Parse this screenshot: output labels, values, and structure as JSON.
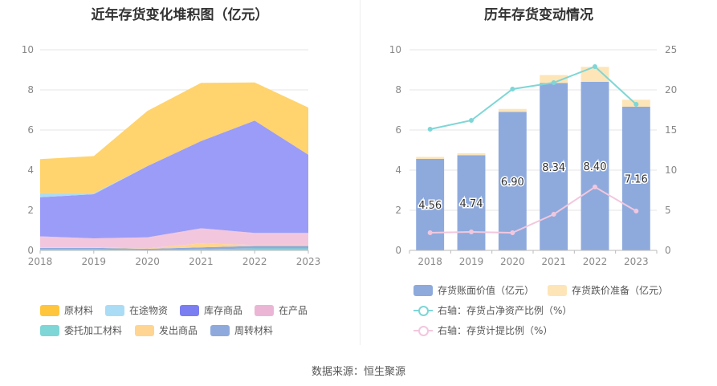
{
  "source_text": "数据来源：恒生聚源",
  "chart_data": [
    {
      "type": "area",
      "title": "近年存货变化堆积图（亿元）",
      "x": [
        "2018",
        "2019",
        "2020",
        "2021",
        "2022",
        "2023"
      ],
      "ylim": [
        0,
        10
      ],
      "yticks": [
        "0",
        "2",
        "4",
        "6",
        "8",
        "10"
      ],
      "stacked": true,
      "grid": true,
      "legend_position": "bottom",
      "series": [
        {
          "name": "委托加工材料",
          "color": "#7fd6d6",
          "values": [
            0.05,
            0.05,
            0.02,
            0.05,
            0.1,
            0.1
          ]
        },
        {
          "name": "周转材料",
          "color": "#8eaadc",
          "values": [
            0.08,
            0.08,
            0.06,
            0.1,
            0.12,
            0.12
          ]
        },
        {
          "name": "发出商品",
          "color": "#ffd591",
          "values": [
            0.02,
            0.02,
            0.02,
            0.2,
            0.05,
            0.05
          ]
        },
        {
          "name": "在产品",
          "color": "#f2c7de",
          "values": [
            0.55,
            0.45,
            0.55,
            0.75,
            0.6,
            0.6
          ]
        },
        {
          "name": "库存商品",
          "color": "#9b9cf7",
          "values": [
            1.95,
            2.2,
            3.55,
            4.35,
            5.6,
            3.9
          ]
        },
        {
          "name": "在途物资",
          "color": "#abdcf5",
          "values": [
            0.2,
            0.05,
            0.0,
            0.0,
            0.0,
            0.0
          ]
        },
        {
          "name": "原材料",
          "color": "#ffd36e",
          "values": [
            1.7,
            1.85,
            2.75,
            2.9,
            1.9,
            2.35
          ]
        }
      ],
      "legend": [
        {
          "name": "原材料",
          "color": "#ffc53d"
        },
        {
          "name": "在途物资",
          "color": "#abdcf5"
        },
        {
          "name": "库存商品",
          "color": "#7b7ef0"
        },
        {
          "name": "在产品",
          "color": "#ebb6d6"
        },
        {
          "name": "委托加工材料",
          "color": "#7fd6d6"
        },
        {
          "name": "发出商品",
          "color": "#ffd591"
        },
        {
          "name": "周转材料",
          "color": "#8eaadc"
        }
      ]
    },
    {
      "type": "bar",
      "title": "历年存货变动情况",
      "categories": [
        "2018",
        "2019",
        "2020",
        "2021",
        "2022",
        "2023"
      ],
      "ylim": [
        0,
        10
      ],
      "yticks": [
        "0",
        "2",
        "4",
        "6",
        "8",
        "10"
      ],
      "y2lim": [
        0,
        25
      ],
      "y2ticks": [
        "0",
        "5",
        "10",
        "15",
        "20",
        "25"
      ],
      "stacked": true,
      "grid": true,
      "legend_position": "bottom",
      "series": [
        {
          "name": "存货账面价值（亿元）",
          "axis": "left",
          "color": "#8eaadc",
          "values": [
            4.56,
            4.74,
            6.9,
            8.34,
            8.4,
            7.16
          ],
          "labels": [
            "4.56",
            "4.74",
            "6.90",
            "8.34",
            "8.40",
            "7.16"
          ]
        },
        {
          "name": "存货跌价准备（亿元）",
          "axis": "left",
          "color": "#fde5b8",
          "values": [
            0.1,
            0.1,
            0.15,
            0.4,
            0.75,
            0.35
          ]
        },
        {
          "name": "右轴：存货占净资产比例（%）",
          "axis": "right",
          "type": "line",
          "color": "#7fd6d6",
          "values": [
            15.1,
            16.2,
            20.1,
            20.9,
            22.9,
            18.2
          ]
        },
        {
          "name": "右轴：存货计提比例（%）",
          "axis": "right",
          "type": "line",
          "color": "#f2c7de",
          "values": [
            2.2,
            2.3,
            2.2,
            4.5,
            7.9,
            4.9
          ]
        }
      ]
    }
  ]
}
